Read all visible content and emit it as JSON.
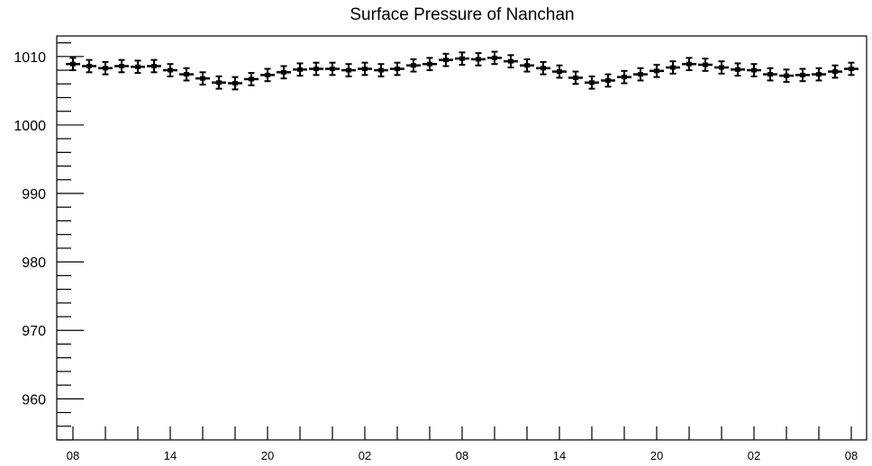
{
  "chart_data": {
    "type": "scatter",
    "title": "Surface Pressure of Nanchan",
    "xlabel": "",
    "ylabel": "",
    "ylim": [
      954,
      1013
    ],
    "x_tick_labels": [
      "08",
      "14",
      "20",
      "02",
      "08",
      "14",
      "20",
      "02",
      "08"
    ],
    "y_tick_labels": [
      "960",
      "970",
      "980",
      "990",
      "1000",
      "1010"
    ],
    "y_ticks": [
      960,
      970,
      980,
      990,
      1000,
      1010
    ],
    "grid": false,
    "legend": "none",
    "series": [
      {
        "values": [
          1008.9,
          1008.6,
          1008.3,
          1008.6,
          1008.5,
          1008.6,
          1008.0,
          1007.4,
          1006.8,
          1006.2,
          1006.1,
          1006.7,
          1007.3,
          1007.7,
          1008.1,
          1008.2,
          1008.2,
          1008.0,
          1008.2,
          1008.0,
          1008.2,
          1008.7,
          1008.9,
          1009.5,
          1009.7,
          1009.6,
          1009.8,
          1009.3,
          1008.7,
          1008.3,
          1007.8,
          1006.9,
          1006.2,
          1006.5,
          1007.0,
          1007.4,
          1007.9,
          1008.4,
          1008.9,
          1008.8,
          1008.4,
          1008.1,
          1008.0,
          1007.4,
          1007.2,
          1007.3,
          1007.4,
          1007.8,
          1008.2
        ],
        "errors": [
          0.9,
          0.9,
          0.9,
          0.9,
          0.9,
          0.9,
          0.9,
          0.9,
          0.9,
          0.9,
          0.9,
          0.9,
          0.9,
          0.9,
          0.9,
          0.9,
          0.9,
          0.9,
          0.9,
          0.9,
          0.9,
          0.9,
          0.9,
          0.9,
          0.9,
          0.9,
          0.9,
          0.9,
          0.9,
          0.9,
          0.9,
          0.9,
          0.9,
          0.9,
          0.9,
          0.9,
          0.9,
          0.9,
          0.9,
          0.9,
          0.9,
          0.9,
          0.9,
          0.9,
          0.9,
          0.9,
          0.9,
          0.9,
          0.9
        ]
      }
    ]
  }
}
